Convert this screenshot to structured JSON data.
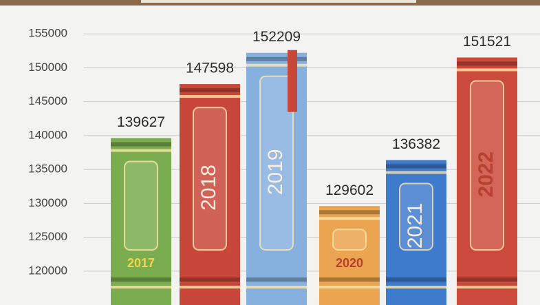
{
  "chart_data": {
    "type": "bar",
    "categories": [
      "2017",
      "2018",
      "2019",
      "2020",
      "2021",
      "2022"
    ],
    "values": [
      139627,
      147598,
      152209,
      129602,
      136382,
      151521
    ],
    "colors": [
      "#79ad4f",
      "#c8473a",
      "#86b1de",
      "#eba450",
      "#3f7bcc",
      "#cc4a3c"
    ],
    "ylim": [
      115000,
      160000
    ],
    "yticks": [
      120000,
      125000,
      130000,
      135000,
      140000,
      145000,
      150000,
      155000
    ],
    "grid": true
  }
}
